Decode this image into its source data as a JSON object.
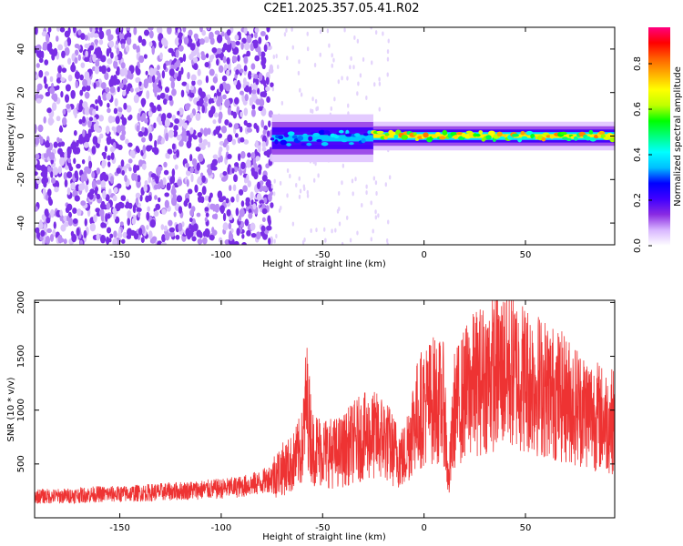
{
  "title": "C2E1.2025.357.05.41.R02",
  "chart_data": [
    {
      "type": "heatmap",
      "xlabel": "Height of straight line (km)",
      "ylabel": "Frequency (Hz)",
      "xlim": [
        -192,
        94
      ],
      "ylim": [
        -50,
        50
      ],
      "x_ticks": [
        -150,
        -100,
        -50,
        0,
        50
      ],
      "y_ticks": [
        -40,
        -20,
        0,
        20,
        40
      ],
      "colorbar": {
        "label": "Normalized spectral amplitude",
        "range": [
          0,
          0.96
        ],
        "ticks": [
          0.0,
          0.2,
          0.4,
          0.6,
          0.8
        ],
        "colors": [
          "#ffffff",
          "#d8b6ff",
          "#8a2be2",
          "#4000ff",
          "#0000ff",
          "#00bfff",
          "#00ffff",
          "#00ff80",
          "#00ff00",
          "#c0ff00",
          "#ffff00",
          "#ffb000",
          "#ff6000",
          "#ff0000",
          "#ff0080"
        ]
      },
      "regions": [
        {
          "x_range": [
            -192,
            -75
          ],
          "freq_range": [
            -50,
            50
          ],
          "amplitude": 0.05,
          "pattern": "broadband noise"
        },
        {
          "x_range": [
            -75,
            -25
          ],
          "freq_center": -1,
          "freq_halfwidth": 5,
          "amplitude": 0.35
        },
        {
          "x_range": [
            -25,
            94
          ],
          "freq_center": 0,
          "freq_halfwidth": 3,
          "amplitude": 0.7
        }
      ]
    },
    {
      "type": "line",
      "xlabel": "Height of straight line (km)",
      "ylabel": "SNR (10 * v/v)",
      "xlim": [
        -192,
        94
      ],
      "ylim": [
        0,
        2020
      ],
      "x_ticks": [
        -150,
        -100,
        -50,
        0,
        50
      ],
      "y_ticks": [
        500,
        1000,
        1500,
        2000
      ],
      "color": "#ee3333",
      "series": [
        {
          "x": [
            -192,
            -180,
            -170,
            -160,
            -150,
            -140,
            -130,
            -120,
            -110,
            -100,
            -90,
            -85,
            -80,
            -75,
            -70,
            -65,
            -60,
            -58,
            -55,
            -50,
            -45,
            -40,
            -35,
            -30,
            -25,
            -20,
            -15,
            -10,
            -5,
            0,
            5,
            10,
            12,
            15,
            20,
            25,
            30,
            35,
            40,
            45,
            50,
            55,
            60,
            65,
            70,
            75,
            80,
            85,
            90,
            94
          ],
          "values": [
            200,
            200,
            210,
            220,
            220,
            230,
            240,
            250,
            260,
            270,
            290,
            310,
            330,
            380,
            450,
            500,
            650,
            1100,
            650,
            620,
            600,
            620,
            700,
            750,
            760,
            750,
            620,
            550,
            900,
            1050,
            1100,
            1050,
            300,
            1000,
            1150,
            1250,
            1300,
            1350,
            1380,
            1350,
            1300,
            1250,
            1200,
            1150,
            1100,
            1050,
            1000,
            950,
            900,
            900
          ]
        }
      ]
    }
  ]
}
